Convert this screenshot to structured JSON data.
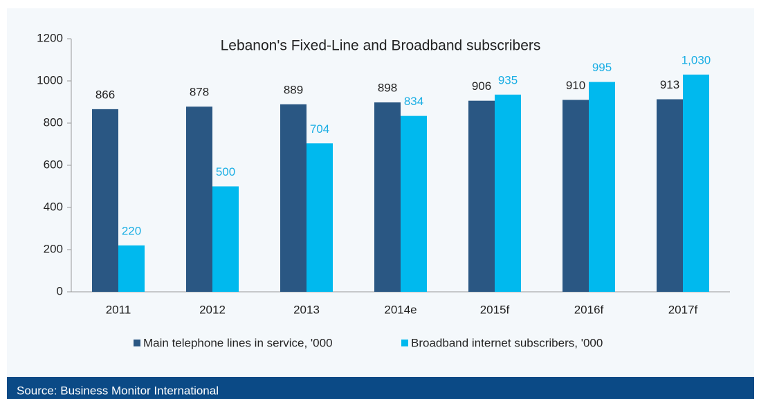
{
  "chart_data": {
    "type": "bar",
    "title": "Lebanon's Fixed-Line and Broadband subscribers",
    "categories": [
      "2011",
      "2012",
      "2013",
      "2014e",
      "2015f",
      "2016f",
      "2017f"
    ],
    "series": [
      {
        "name": "Main telephone lines in service, '000",
        "color": "#2a5783",
        "values": [
          866,
          878,
          889,
          898,
          906,
          910,
          913
        ]
      },
      {
        "name": "Broadband internet subscribers, '000",
        "color": "#00b9ee",
        "values": [
          220,
          500,
          704,
          834,
          935,
          995,
          1030
        ],
        "value_labels": [
          "220",
          "500",
          "704",
          "834",
          "935",
          "995",
          "1,030"
        ]
      }
    ],
    "ylim": [
      0,
      1200
    ],
    "yticks": [
      0,
      200,
      400,
      600,
      800,
      1000,
      1200
    ],
    "source": "Source: Business Monitor International"
  }
}
